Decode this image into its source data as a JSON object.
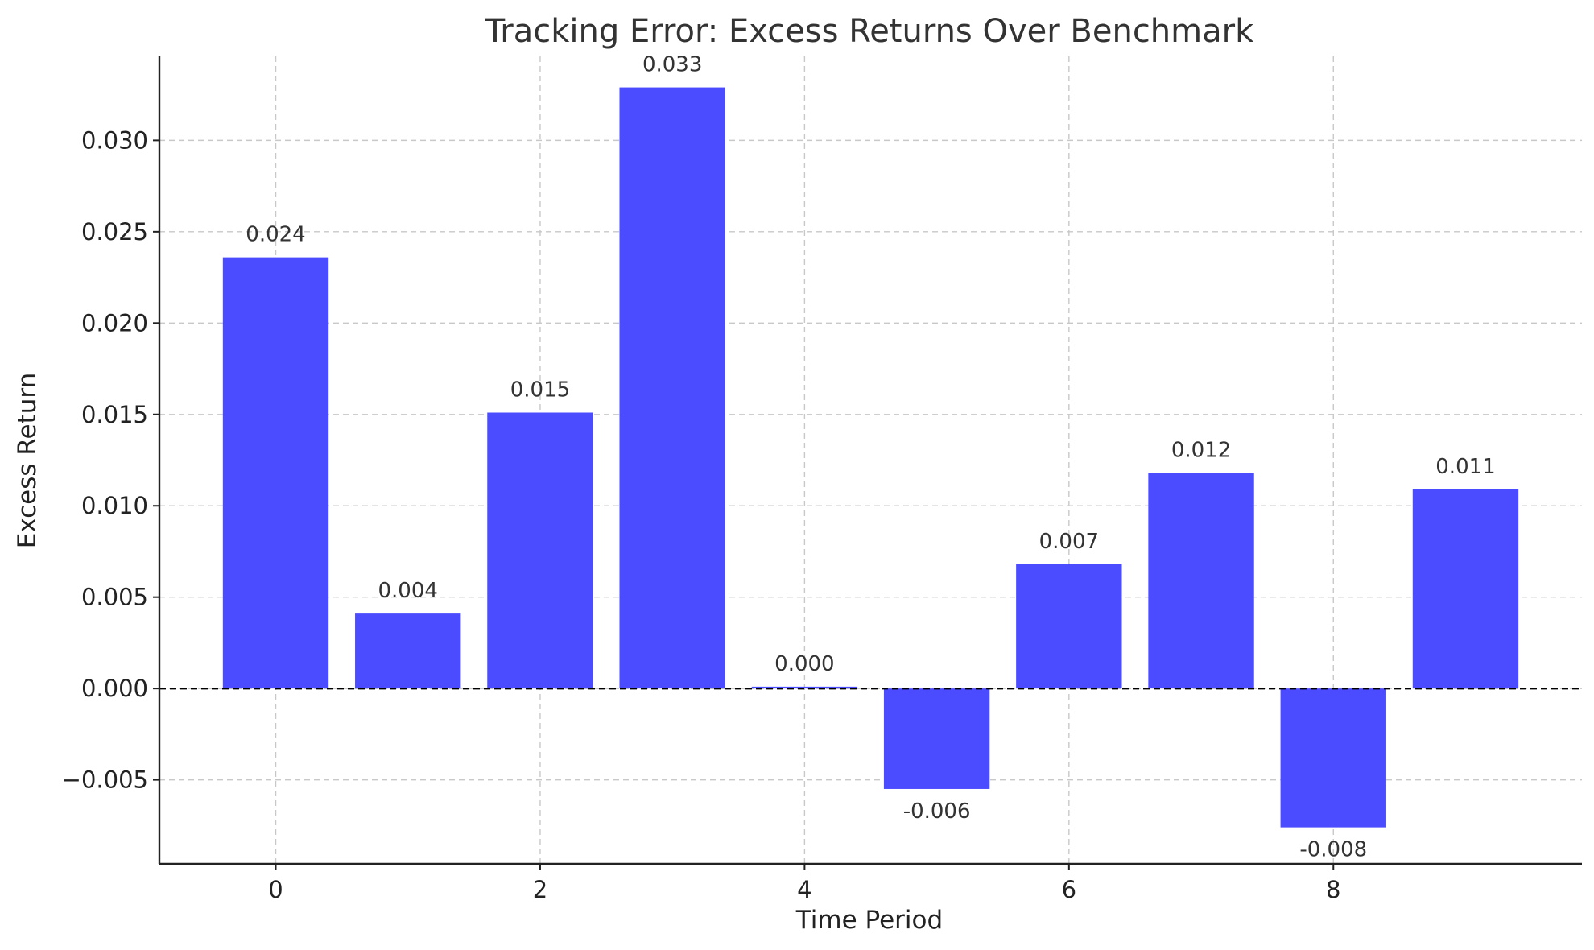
{
  "chart_data": {
    "type": "bar",
    "title": "Tracking Error: Excess Returns Over Benchmark",
    "xlabel": "Time Period",
    "ylabel": "Excess Return",
    "categories": [
      0,
      1,
      2,
      3,
      4,
      5,
      6,
      7,
      8,
      9
    ],
    "values": [
      0.0236,
      0.0041,
      0.0151,
      0.0329,
      0.0001,
      -0.0055,
      0.0068,
      0.0118,
      -0.0076,
      0.0109
    ],
    "data_labels": [
      "0.024",
      "0.004",
      "0.015",
      "0.033",
      "0.000",
      "-0.006",
      "0.007",
      "0.012",
      "-0.008",
      "0.011"
    ],
    "x_ticks": [
      0,
      2,
      4,
      6,
      8
    ],
    "x_tick_labels": [
      "0",
      "2",
      "4",
      "6",
      "8"
    ],
    "y_ticks": [
      -0.005,
      0,
      0.005,
      0.01,
      0.015,
      0.02,
      0.025,
      0.03
    ],
    "y_tick_labels": [
      "−0.005",
      "0.000",
      "0.005",
      "0.010",
      "0.015",
      "0.020",
      "0.025",
      "0.030"
    ],
    "xlim": [
      -0.88,
      9.88
    ],
    "ylim": [
      -0.0096,
      0.0346
    ],
    "grid": true,
    "reference_line": 0,
    "bar_color": "#4b4bff",
    "zero_line_color": "#000000"
  }
}
